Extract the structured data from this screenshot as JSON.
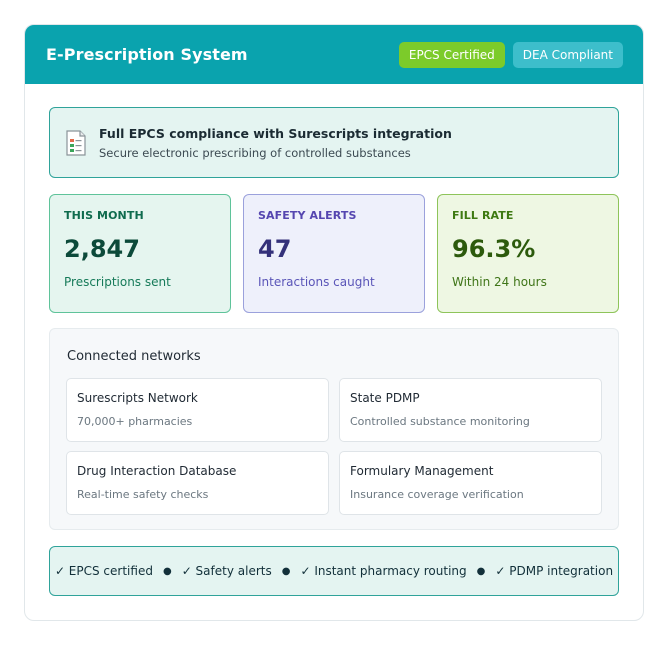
{
  "header": {
    "title": "E-Prescription System",
    "badges": [
      "EPCS Certified",
      "DEA Compliant"
    ]
  },
  "banner": {
    "icon": "prescription-document-icon",
    "title": "Full EPCS compliance with Surescripts integration",
    "subtitle": "Secure electronic prescribing of controlled substances"
  },
  "stats": [
    {
      "label": "THIS MONTH",
      "value": "2,847",
      "sub": "Prescriptions sent"
    },
    {
      "label": "SAFETY ALERTS",
      "value": "47",
      "sub": "Interactions caught"
    },
    {
      "label": "FILL RATE",
      "value": "96.3%",
      "sub": "Within 24 hours"
    }
  ],
  "networks": {
    "title": "Connected networks",
    "items": [
      {
        "name": "Surescripts Network",
        "desc": "70,000+ pharmacies"
      },
      {
        "name": "State PDMP",
        "desc": "Controlled substance monitoring"
      },
      {
        "name": "Drug Interaction Database",
        "desc": "Real-time safety checks"
      },
      {
        "name": "Formulary Management",
        "desc": "Insurance coverage verification"
      }
    ]
  },
  "footer": {
    "items": [
      "✓ EPCS certified",
      "✓ Safety alerts",
      "✓ Instant pharmacy routing",
      "✓ PDMP integration"
    ],
    "separator": "●"
  },
  "colors": {
    "header_bg": "#0aa3ae",
    "epcs_badge": "#7ccb2a",
    "dea_badge": "#3dbecb",
    "accent_border": "#2fa39a"
  }
}
